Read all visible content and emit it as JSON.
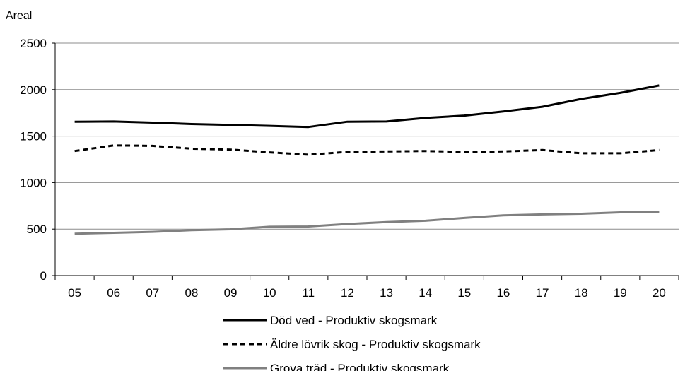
{
  "chart_data": {
    "type": "line",
    "ylabel": "Areal",
    "ylim": [
      0,
      2500
    ],
    "yticks": [
      0,
      500,
      1000,
      1500,
      2000,
      2500
    ],
    "categories": [
      "05",
      "06",
      "07",
      "08",
      "09",
      "10",
      "11",
      "12",
      "13",
      "14",
      "15",
      "16",
      "17",
      "18",
      "19",
      "20"
    ],
    "grid": true,
    "legend_position": "bottom",
    "series": [
      {
        "name": "Död ved - Produktiv skogsmark",
        "color": "#000000",
        "style": "solid",
        "values": [
          1655,
          1657,
          1645,
          1630,
          1620,
          1610,
          1598,
          1655,
          1657,
          1695,
          1720,
          1765,
          1815,
          1900,
          1965,
          2045
        ]
      },
      {
        "name": "Äldre lövrik skog - Produktiv skogsmark",
        "color": "#000000",
        "style": "dashed",
        "values": [
          1340,
          1400,
          1395,
          1365,
          1355,
          1325,
          1300,
          1330,
          1335,
          1340,
          1330,
          1335,
          1350,
          1315,
          1315,
          1350
        ]
      },
      {
        "name": "Grova träd - Produktiv skogsmark",
        "color": "#808080",
        "style": "solid",
        "values": [
          450,
          460,
          470,
          488,
          498,
          525,
          528,
          555,
          575,
          590,
          620,
          648,
          658,
          665,
          680,
          683
        ]
      }
    ]
  }
}
